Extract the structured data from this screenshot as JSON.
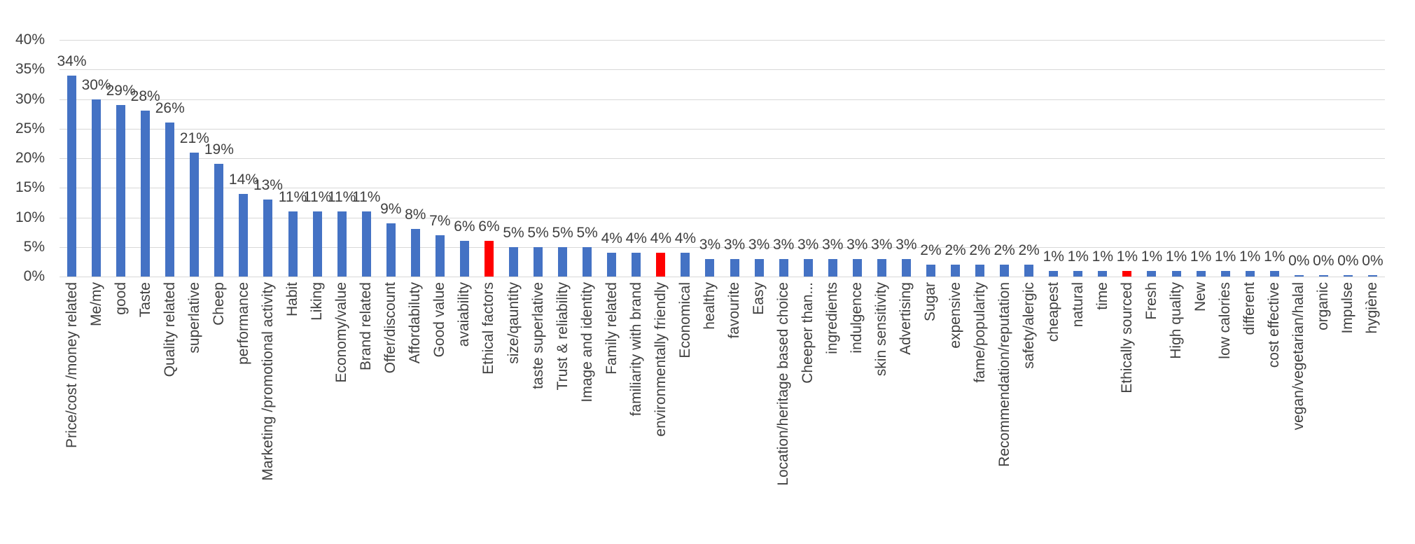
{
  "chart_data": {
    "type": "bar",
    "title": "",
    "xlabel": "",
    "ylabel": "",
    "ylim": [
      0,
      40
    ],
    "ytick_step": 5,
    "yticks": [
      "40%",
      "35%",
      "30%",
      "25%",
      "20%",
      "15%",
      "10%",
      "5%",
      "0%"
    ],
    "grid": true,
    "legend": "none",
    "bar_color": "#4472c4",
    "highlight_color": "#ff0000",
    "gridline_color": "#d8d8d8",
    "value_label_color": "#3f3f3f",
    "axis_label_color": "#404040",
    "highlight_indices": [
      17,
      24,
      43
    ],
    "categories": [
      "Price/cost /money related",
      "Me/my",
      "good",
      "Taste",
      "Quality related",
      "superlative",
      "Cheep",
      "performance",
      "Marketing /promotional activity",
      "Habit",
      "Liking",
      "Economy/value",
      "Brand related",
      "Offer/discount",
      "Affordabiluty",
      "Good value",
      "avaiability",
      "Ethical factors",
      "size/qauntity",
      "taste superlative",
      "Trust & reliability",
      "Image and identity",
      "Family related",
      "familiarity with brand",
      "environmentally friendly",
      "Economical",
      "healthy",
      "favourite",
      "Easy",
      "Location/heritage based choice",
      "Cheeper than...",
      "ingredients",
      "indulgence",
      "skin sensitivity",
      "Advertising",
      "Sugar",
      "expensive",
      "fame/popularity",
      "Recommendation/reputation",
      "safety/alergic",
      "cheapest",
      "natural",
      "time",
      "Ethically sourced",
      "Fresh",
      "High quality",
      "New",
      "low calories",
      "different",
      "cost effective",
      "vegan/vegetarian/halal",
      "organic",
      "Impulse",
      "hygiène"
    ],
    "values": [
      34,
      30,
      29,
      28,
      26,
      21,
      19,
      14,
      13,
      11,
      11,
      11,
      11,
      9,
      8,
      7,
      6,
      6,
      5,
      5,
      5,
      5,
      4,
      4,
      4,
      4,
      3,
      3,
      3,
      3,
      3,
      3,
      3,
      3,
      3,
      2,
      2,
      2,
      2,
      2,
      1,
      1,
      1,
      1,
      1,
      1,
      1,
      1,
      1,
      1,
      0,
      0,
      0,
      0
    ],
    "value_labels": [
      "34%",
      "30%",
      "29%",
      "28%",
      "26%",
      "21%",
      "19%",
      "14%",
      "13%",
      "11%",
      "11%",
      "11%",
      "11%",
      "9%",
      "8%",
      "7%",
      "6%",
      "6%",
      "5%",
      "5%",
      "5%",
      "5%",
      "4%",
      "4%",
      "4%",
      "4%",
      "3%",
      "3%",
      "3%",
      "3%",
      "3%",
      "3%",
      "3%",
      "3%",
      "3%",
      "2%",
      "2%",
      "2%",
      "2%",
      "2%",
      "1%",
      "1%",
      "1%",
      "1%",
      "1%",
      "1%",
      "1%",
      "1%",
      "1%",
      "1%",
      "0%",
      "0%",
      "0%",
      "0%"
    ]
  }
}
